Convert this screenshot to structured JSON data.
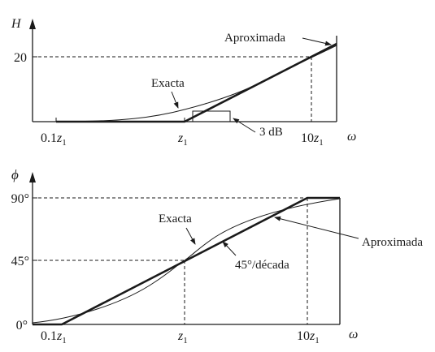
{
  "magnitude_plot": {
    "y_axis_symbol": "H",
    "y_tick": "20",
    "x_axis_symbol": "ω",
    "x_ticks": [
      {
        "base": "0.1",
        "var": "z",
        "sub": "1"
      },
      {
        "base": "",
        "var": "z",
        "sub": "1"
      },
      {
        "base": "10",
        "var": "z",
        "sub": "1"
      }
    ],
    "label_exact": "Exacta",
    "label_approx": "Aproximada",
    "label_3db": "3 dB"
  },
  "phase_plot": {
    "y_axis_symbol": "ϕ",
    "y_ticks": [
      "90°",
      "45°",
      "0°"
    ],
    "x_axis_symbol": "ω",
    "x_ticks": [
      {
        "base": "0.1",
        "var": "z",
        "sub": "1"
      },
      {
        "base": "",
        "var": "z",
        "sub": "1"
      },
      {
        "base": "10",
        "var": "z",
        "sub": "1"
      }
    ],
    "label_exact": "Exacta",
    "label_approx": "Aproximada",
    "label_slope": "45°/década"
  },
  "colors": {
    "ink": "#1a1a1a",
    "background": "#ffffff"
  }
}
